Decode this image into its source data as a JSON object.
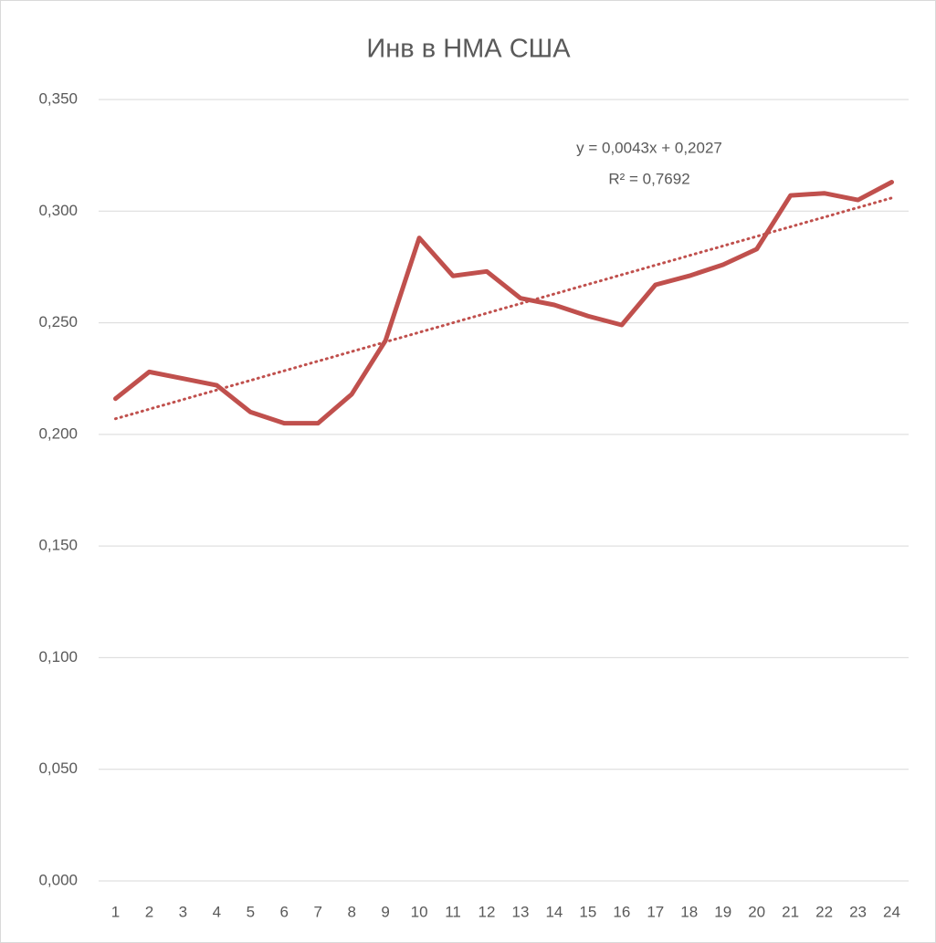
{
  "chart_data": {
    "type": "line",
    "title": "Инв в НМА США",
    "categories": [
      "1",
      "2",
      "3",
      "4",
      "5",
      "6",
      "7",
      "8",
      "9",
      "10",
      "11",
      "12",
      "13",
      "14",
      "15",
      "16",
      "17",
      "18",
      "19",
      "20",
      "21",
      "22",
      "23",
      "24"
    ],
    "series": [
      {
        "color": "#c0504d",
        "values": [
          0.216,
          0.228,
          0.225,
          0.222,
          0.21,
          0.205,
          0.205,
          0.218,
          0.242,
          0.288,
          0.271,
          0.273,
          0.261,
          0.258,
          0.253,
          0.249,
          0.267,
          0.271,
          0.276,
          0.283,
          0.307,
          0.308,
          0.305,
          0.313
        ]
      }
    ],
    "ylim": [
      0,
      0.35
    ],
    "yticks": [
      {
        "value": 0,
        "label": "0,000"
      },
      {
        "value": 0.05,
        "label": "0,050"
      },
      {
        "value": 0.1,
        "label": "0,100"
      },
      {
        "value": 0.15,
        "label": "0,150"
      },
      {
        "value": 0.2,
        "label": "0,200"
      },
      {
        "value": 0.25,
        "label": "0,250"
      },
      {
        "value": 0.3,
        "label": "0,300"
      },
      {
        "value": 0.35,
        "label": "0,350"
      }
    ],
    "grid": true,
    "trendline": {
      "slope": 0.0043,
      "intercept": 0.2027,
      "r2": 0.7692,
      "label": "y = 0,0043x + 0,2027",
      "r2_label": "R² = 0,7692"
    }
  }
}
